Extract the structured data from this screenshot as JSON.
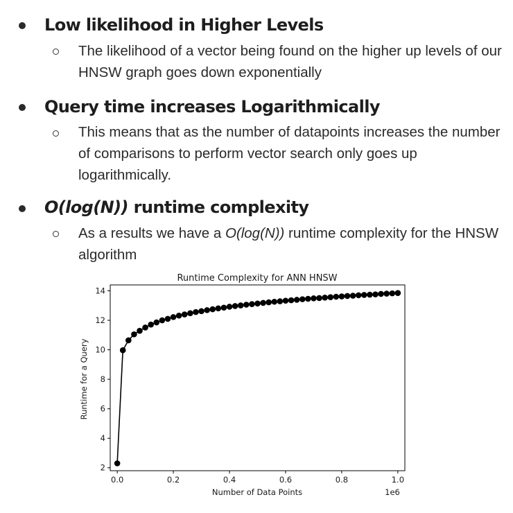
{
  "bullets": [
    {
      "heading": "Low likelihood in Higher Levels",
      "sub": "The likelihood of a vector being found on the higher up levels of our HNSW graph goes down exponentially"
    },
    {
      "heading": "Query time increases Logarithmically",
      "sub": "This means that as the number of datapoints increases the number of comparisons to perform vector search only goes up logarithmically."
    },
    {
      "heading_italic": "O(log(N))",
      "heading_rest": " runtime complexity",
      "sub_before": "As a results we have a ",
      "sub_italic": "O(log(N))",
      "sub_after": " runtime complexity for the HNSW algorithm"
    }
  ],
  "chart_data": {
    "type": "line",
    "title": "Runtime Complexity for ANN HNSW",
    "xlabel": "Number of Data Points",
    "ylabel": "Runtime for a Query",
    "x_offset_label": "1e6",
    "xlim": [
      -0.025,
      1.025
    ],
    "ylim": [
      1.8,
      14.4
    ],
    "x_ticks": [
      0.0,
      0.2,
      0.4,
      0.6,
      0.8,
      1.0
    ],
    "x_tick_labels": [
      "0.0",
      "0.2",
      "0.4",
      "0.6",
      "0.8",
      "1.0"
    ],
    "y_ticks": [
      2,
      4,
      6,
      8,
      10,
      12,
      14
    ],
    "y_tick_labels": [
      "2",
      "4",
      "6",
      "8",
      "10",
      "12",
      "14"
    ],
    "grid": false,
    "marker": "circle",
    "color": "#000000",
    "series": [
      {
        "x": [
          1e-06,
          0.02,
          0.04,
          0.06,
          0.08,
          0.1,
          0.12,
          0.14,
          0.16,
          0.18,
          0.2,
          0.22,
          0.24,
          0.26,
          0.28,
          0.3,
          0.32,
          0.34,
          0.36,
          0.38,
          0.4,
          0.42,
          0.44,
          0.46,
          0.48,
          0.5,
          0.52,
          0.54,
          0.56,
          0.58,
          0.6,
          0.62,
          0.64,
          0.66,
          0.68,
          0.7,
          0.72,
          0.74,
          0.76,
          0.78,
          0.8,
          0.82,
          0.84,
          0.86,
          0.88,
          0.9,
          0.92,
          0.94,
          0.96,
          0.98,
          1.0
        ],
        "y": [
          2.3,
          9.97,
          10.64,
          11.05,
          11.29,
          11.51,
          11.71,
          11.86,
          12.0,
          12.1,
          12.22,
          12.32,
          12.4,
          12.48,
          12.56,
          12.62,
          12.69,
          12.75,
          12.81,
          12.86,
          12.92,
          12.97,
          13.01,
          13.06,
          13.1,
          13.14,
          13.18,
          13.22,
          13.26,
          13.29,
          13.33,
          13.36,
          13.39,
          13.43,
          13.46,
          13.49,
          13.51,
          13.54,
          13.57,
          13.6,
          13.62,
          13.65,
          13.67,
          13.7,
          13.72,
          13.74,
          13.76,
          13.79,
          13.81,
          13.83,
          13.85
        ]
      }
    ]
  }
}
